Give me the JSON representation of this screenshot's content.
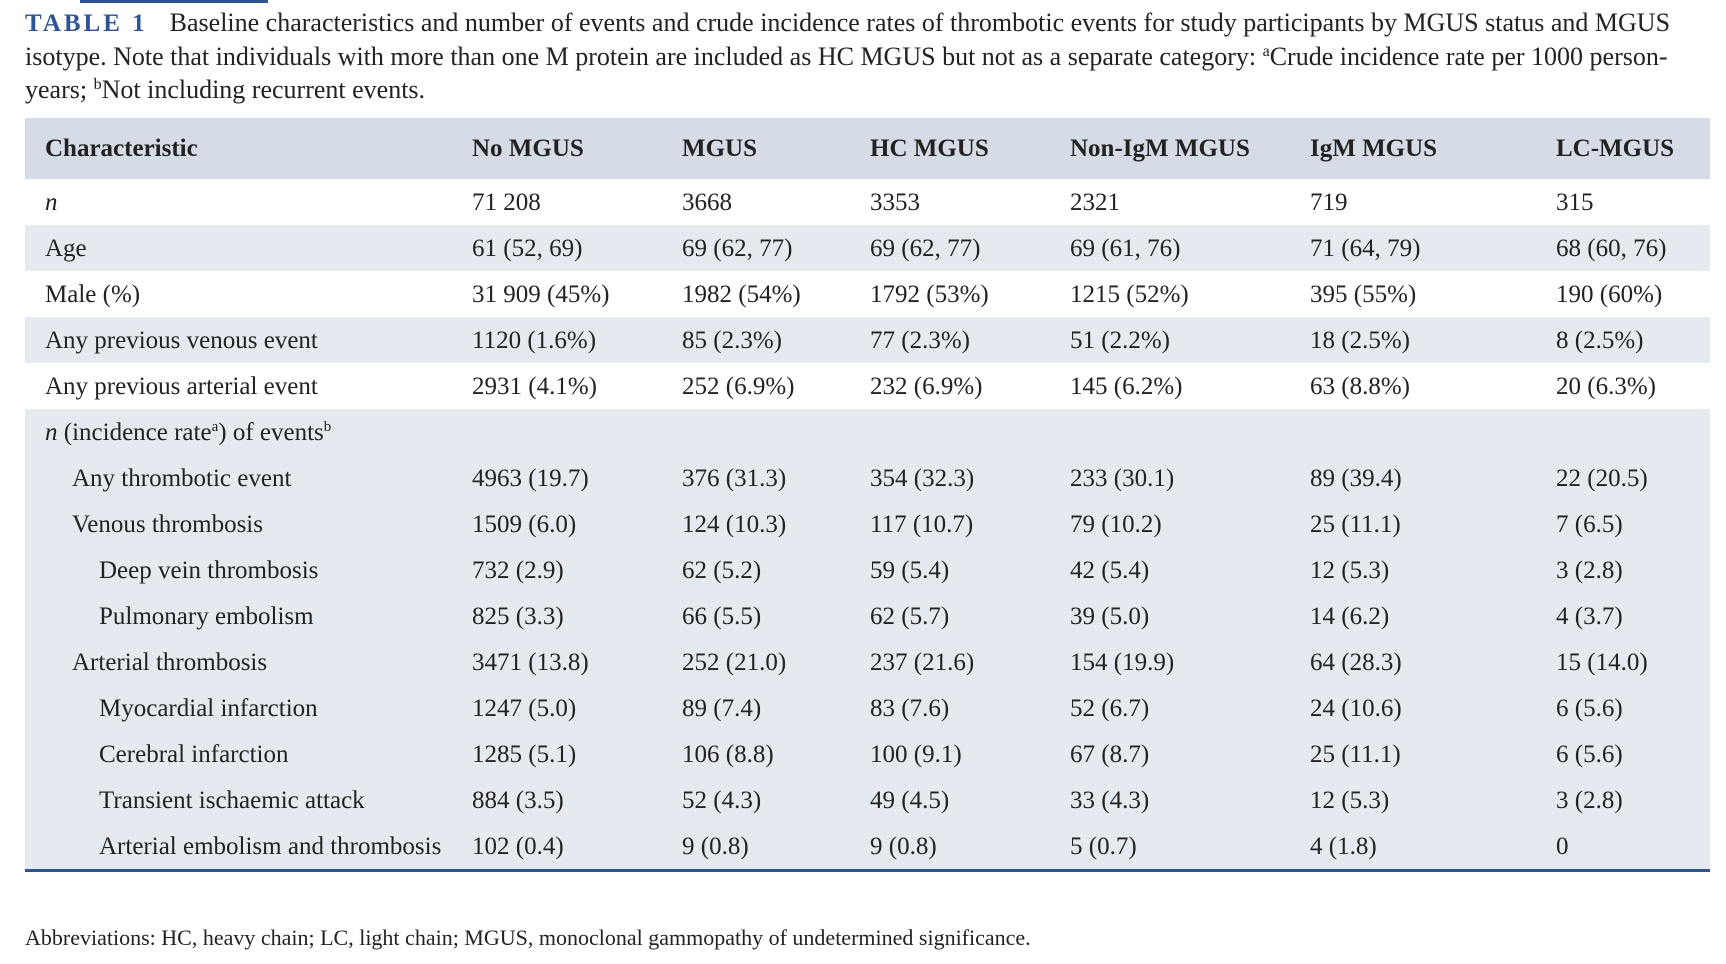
{
  "caption": {
    "label": "TABLE 1",
    "text_part1": "Baseline characteristics and number of events and crude incidence rates of thrombotic events for study participants by MGUS status and MGUS isotype. Note that individuals with more than one M protein are included as HC MGUS but not as a separate category: ",
    "sup_a": "a",
    "text_part2": "Crude incidence rate per 1000 person-years; ",
    "sup_b": "b",
    "text_part3": "Not including recurrent events."
  },
  "table": {
    "headers": [
      "Characteristic",
      "No MGUS",
      "MGUS",
      "HC MGUS",
      "Non-IgM MGUS",
      "IgM MGUS",
      "LC-MGUS"
    ],
    "rows": [
      {
        "label": "n",
        "values": [
          "71 208",
          "3668",
          "3353",
          "2321",
          "719",
          "315"
        ]
      },
      {
        "label": "Age",
        "values": [
          "61 (52, 69)",
          "69 (62, 77)",
          "69 (62, 77)",
          "69 (61, 76)",
          "71 (64, 79)",
          "68 (60, 76)"
        ]
      },
      {
        "label": "Male (%)",
        "values": [
          "31 909 (45%)",
          "1982 (54%)",
          "1792 (53%)",
          "1215 (52%)",
          "395 (55%)",
          "190 (60%)"
        ]
      },
      {
        "label": "Any previous venous event",
        "values": [
          "1120 (1.6%)",
          "85 (2.3%)",
          "77 (2.3%)",
          "51 (2.2%)",
          "18 (2.5%)",
          "8 (2.5%)"
        ]
      },
      {
        "label": "Any previous arterial event",
        "values": [
          "2931 (4.1%)",
          "252 (6.9%)",
          "232 (6.9%)",
          "145 (6.2%)",
          "63 (8.8%)",
          "20 (6.3%)"
        ]
      }
    ],
    "section": {
      "n": "n",
      "part1": "(incidence rate",
      "sup_a": "a",
      "part2": ") of events",
      "sup_b": "b"
    },
    "event_rows": [
      {
        "label": "Any thrombotic event",
        "values": [
          "4963 (19.7)",
          "376 (31.3)",
          "354 (32.3)",
          "233 (30.1)",
          "89 (39.4)",
          "22 (20.5)"
        ]
      },
      {
        "label": "Venous thrombosis",
        "values": [
          "1509 (6.0)",
          "124 (10.3)",
          "117 (10.7)",
          "79 (10.2)",
          "25 (11.1)",
          "7 (6.5)"
        ]
      },
      {
        "label": "Deep vein thrombosis",
        "values": [
          "732 (2.9)",
          "62 (5.2)",
          "59 (5.4)",
          "42 (5.4)",
          "12 (5.3)",
          "3 (2.8)"
        ]
      },
      {
        "label": "Pulmonary embolism",
        "values": [
          "825 (3.3)",
          "66 (5.5)",
          "62 (5.7)",
          "39 (5.0)",
          "14 (6.2)",
          "4 (3.7)"
        ]
      },
      {
        "label": "Arterial thrombosis",
        "values": [
          "3471 (13.8)",
          "252 (21.0)",
          "237 (21.6)",
          "154 (19.9)",
          "64 (28.3)",
          "15 (14.0)"
        ]
      },
      {
        "label": "Myocardial infarction",
        "values": [
          "1247 (5.0)",
          "89 (7.4)",
          "83 (7.6)",
          "52 (6.7)",
          "24 (10.6)",
          "6 (5.6)"
        ]
      },
      {
        "label": "Cerebral infarction",
        "values": [
          "1285 (5.1)",
          "106 (8.8)",
          "100 (9.1)",
          "67 (8.7)",
          "25 (11.1)",
          "6 (5.6)"
        ]
      },
      {
        "label": "Transient ischaemic attack",
        "values": [
          "884 (3.5)",
          "52 (4.3)",
          "49 (4.5)",
          "33 (4.3)",
          "12 (5.3)",
          "3 (2.8)"
        ]
      },
      {
        "label": "Arterial embolism and thrombosis",
        "values": [
          "102 (0.4)",
          "9 (0.8)",
          "9 (0.8)",
          "5 (0.7)",
          "4 (1.8)",
          "0"
        ]
      }
    ]
  },
  "footnote": "Abbreviations: HC, heavy chain; LC, light chain; MGUS, monoclonal gammopathy of undetermined significance.",
  "colors": {
    "accent": "#2f5496",
    "header_bg": "#d6dce6",
    "stripe_bg": "#e5eaf1"
  }
}
